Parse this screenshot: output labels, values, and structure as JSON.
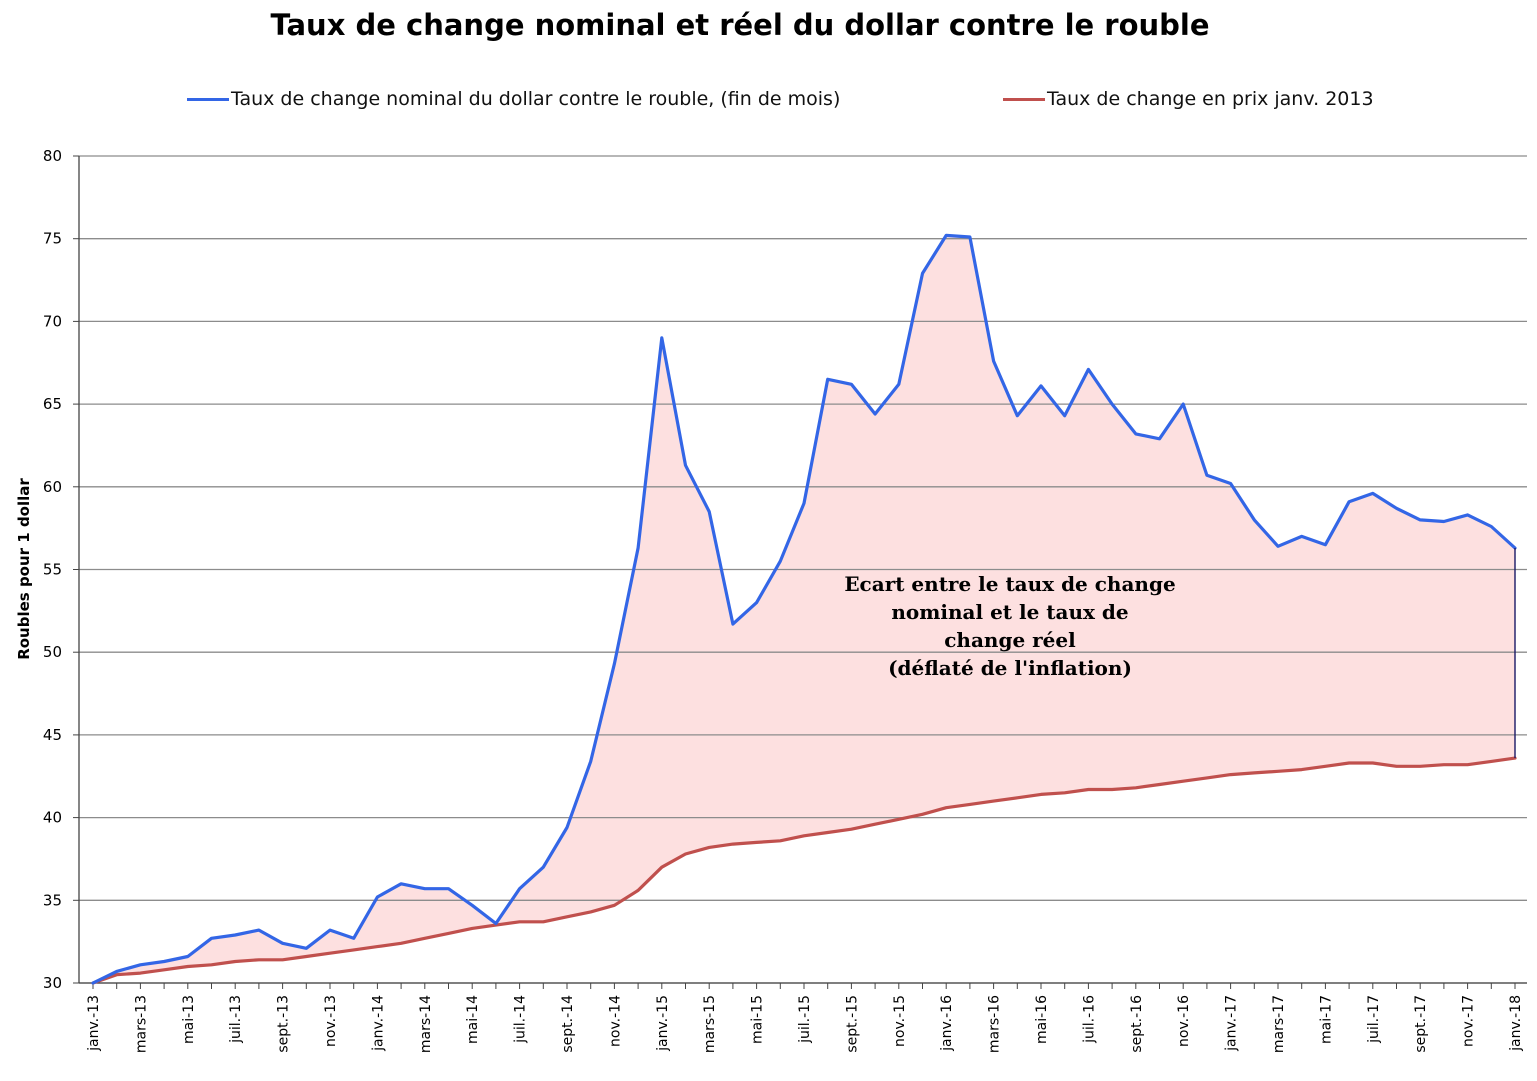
{
  "chart_data": {
    "type": "area",
    "title": "Taux de change nominal et réel du dollar contre le rouble",
    "ylabel": "Roubles pour 1 dollar",
    "xlabel": "",
    "ylim": [
      30,
      80
    ],
    "yticks": [
      30,
      35,
      40,
      45,
      50,
      55,
      60,
      65,
      70,
      75,
      80
    ],
    "grid": true,
    "legend_position": "top",
    "x_tick_labels": [
      "janv.-13",
      "mars-13",
      "mai-13",
      "juil.-13",
      "sept.-13",
      "nov.-13",
      "janv.-14",
      "mars-14",
      "mai-14",
      "juil.-14",
      "sept.-14",
      "nov.-14",
      "janv.-15",
      "mars-15",
      "mai-15",
      "juil.-15",
      "sept.-15",
      "nov.-15",
      "janv.-16",
      "mars-16",
      "mai-16",
      "juil.-16",
      "sept.-16",
      "nov.-16",
      "janv.-17",
      "mars-17",
      "mai-17",
      "juil.-17",
      "sept.-17",
      "nov.-17",
      "janv.-18"
    ],
    "x": [
      "2013-01",
      "2013-02",
      "2013-03",
      "2013-04",
      "2013-05",
      "2013-06",
      "2013-07",
      "2013-08",
      "2013-09",
      "2013-10",
      "2013-11",
      "2013-12",
      "2014-01",
      "2014-02",
      "2014-03",
      "2014-04",
      "2014-05",
      "2014-06",
      "2014-07",
      "2014-08",
      "2014-09",
      "2014-10",
      "2014-11",
      "2014-12",
      "2015-01",
      "2015-02",
      "2015-03",
      "2015-04",
      "2015-05",
      "2015-06",
      "2015-07",
      "2015-08",
      "2015-09",
      "2015-10",
      "2015-11",
      "2015-12",
      "2016-01",
      "2016-02",
      "2016-03",
      "2016-04",
      "2016-05",
      "2016-06",
      "2016-07",
      "2016-08",
      "2016-09",
      "2016-10",
      "2016-11",
      "2016-12",
      "2017-01",
      "2017-02",
      "2017-03",
      "2017-04",
      "2017-05",
      "2017-06",
      "2017-07",
      "2017-08",
      "2017-09",
      "2017-10",
      "2017-11",
      "2017-12",
      "2018-01"
    ],
    "series": [
      {
        "name": "Taux de change nominal du dollar contre le rouble, (fin de mois)",
        "color": "#3366e6",
        "values": [
          30.0,
          30.7,
          31.1,
          31.3,
          31.6,
          32.7,
          32.9,
          33.2,
          32.4,
          32.1,
          33.2,
          32.7,
          35.2,
          36.0,
          35.7,
          35.7,
          34.7,
          33.6,
          35.7,
          37.0,
          39.4,
          43.4,
          49.3,
          56.3,
          69.0,
          61.3,
          58.5,
          51.7,
          53.0,
          55.5,
          59.0,
          66.5,
          66.2,
          64.4,
          66.2,
          72.9,
          75.2,
          75.1,
          67.6,
          64.3,
          66.1,
          64.3,
          67.1,
          65.0,
          63.2,
          62.9,
          65.0,
          60.7,
          60.2,
          58.0,
          56.4,
          57.0,
          56.5,
          59.1,
          59.6,
          58.7,
          58.0,
          57.9,
          58.3,
          57.6,
          56.3
        ]
      },
      {
        "name": "Taux de change en prix janv. 2013",
        "color": "#c0504d",
        "values": [
          30.0,
          30.5,
          30.6,
          30.8,
          31.0,
          31.1,
          31.3,
          31.4,
          31.4,
          31.6,
          31.8,
          32.0,
          32.2,
          32.4,
          32.7,
          33.0,
          33.3,
          33.5,
          33.7,
          33.7,
          34.0,
          34.3,
          34.7,
          35.6,
          37.0,
          37.8,
          38.2,
          38.4,
          38.5,
          38.6,
          38.9,
          39.1,
          39.3,
          39.6,
          39.9,
          40.2,
          40.6,
          40.8,
          41.0,
          41.2,
          41.4,
          41.5,
          41.7,
          41.7,
          41.8,
          42.0,
          42.2,
          42.4,
          42.6,
          42.7,
          42.8,
          42.9,
          43.1,
          43.3,
          43.3,
          43.1,
          43.1,
          43.2,
          43.2,
          43.4,
          43.6
        ]
      }
    ],
    "annotation": {
      "lines": [
        "Ecart entre le taux de change",
        "nominal et le taux de",
        "change réel",
        "(déflaté de l'inflation)"
      ]
    },
    "fill_between_color": "#fde0e0",
    "grid_color": "#8c8c8c"
  }
}
